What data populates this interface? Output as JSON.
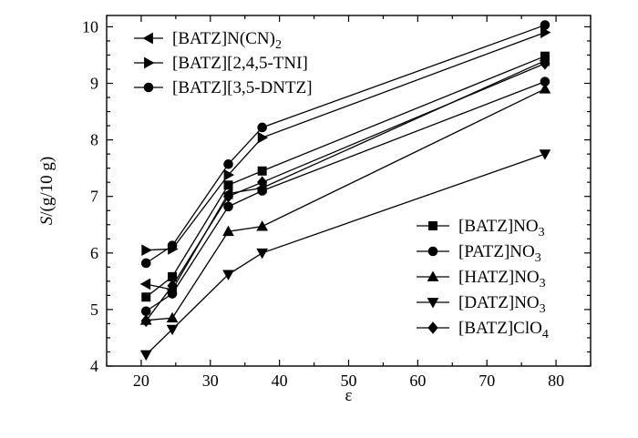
{
  "chart_data": {
    "type": "line",
    "xlabel": "ε",
    "ylabel_italic": "S",
    "ylabel_rest": "/(g/10 g)",
    "xlim": [
      15,
      85
    ],
    "ylim": [
      4,
      10.2
    ],
    "x_ticks": [
      20,
      30,
      40,
      50,
      60,
      70,
      80
    ],
    "y_ticks": [
      4,
      5,
      6,
      7,
      8,
      9,
      10
    ],
    "grid": false,
    "x": [
      20.7,
      24.5,
      32.6,
      37.5,
      78.4
    ],
    "series": [
      {
        "name": "[BATZ]N(CN)",
        "sub": "2",
        "marker": "triangle-left",
        "legend_group": "top-left",
        "values": [
          5.45,
          5.35,
          7.05,
          7.15,
          9.4
        ]
      },
      {
        "name": "[BATZ][2,4,5-TNI]",
        "sub": "",
        "marker": "triangle-right",
        "legend_group": "top-left",
        "values": [
          6.05,
          6.07,
          7.38,
          8.04,
          9.9
        ]
      },
      {
        "name": "[BATZ][3,5-DNTZ]",
        "sub": "",
        "marker": "circle",
        "legend_group": "top-left",
        "values": [
          5.82,
          6.13,
          7.57,
          8.22,
          10.03
        ]
      },
      {
        "name": "[BATZ]NO",
        "sub": "3",
        "marker": "square",
        "legend_group": "bottom-right",
        "values": [
          5.22,
          5.58,
          7.2,
          7.45,
          9.48
        ]
      },
      {
        "name": "[PATZ]NO",
        "sub": "3",
        "marker": "circle",
        "legend_group": "bottom-right",
        "values": [
          4.97,
          5.28,
          6.82,
          7.1,
          9.03
        ]
      },
      {
        "name": "[HATZ]NO",
        "sub": "3",
        "marker": "triangle-up",
        "legend_group": "bottom-right",
        "values": [
          4.81,
          4.85,
          6.38,
          6.47,
          8.9
        ]
      },
      {
        "name": "[DATZ]NO",
        "sub": "3",
        "marker": "triangle-down",
        "legend_group": "bottom-right",
        "values": [
          4.2,
          4.65,
          5.62,
          6.0,
          7.75
        ]
      },
      {
        "name": "[BATZ]ClO",
        "sub": "4",
        "marker": "diamond",
        "legend_group": "bottom-right",
        "values": [
          4.8,
          5.42,
          7.0,
          7.25,
          9.35
        ]
      }
    ]
  }
}
